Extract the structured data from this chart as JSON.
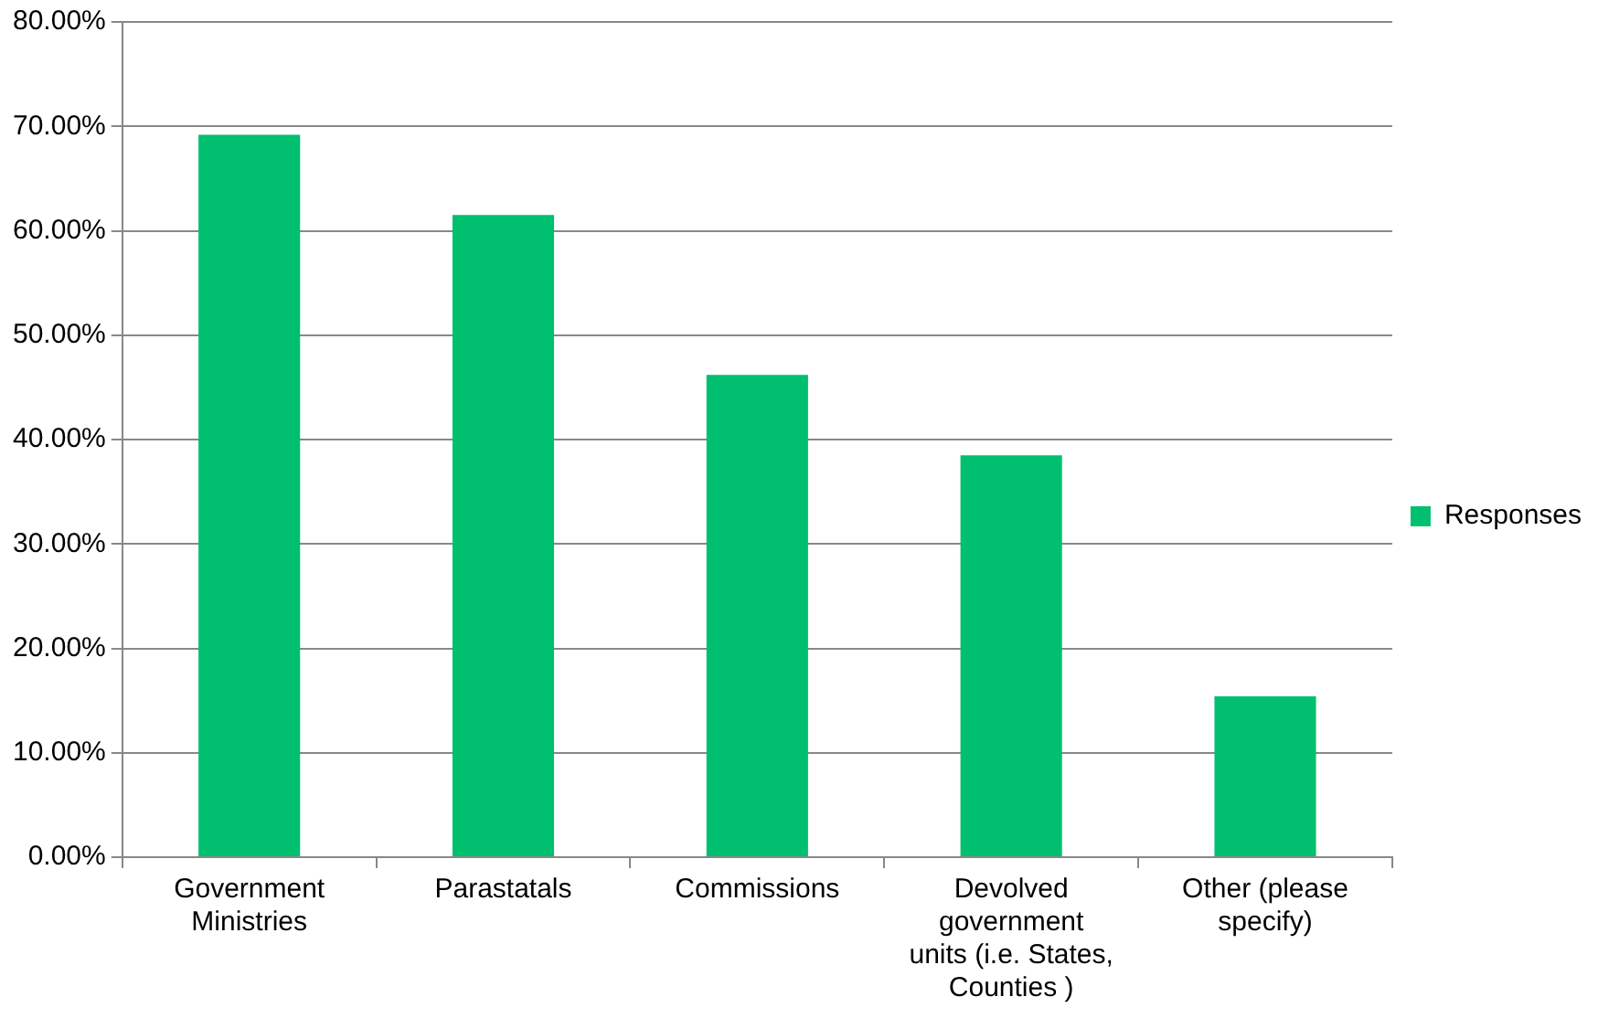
{
  "chart_data": {
    "type": "bar",
    "categories": [
      "Government Ministries",
      "Parastatals",
      "Commissions",
      "Devolved government units (i.e. States, Counties )",
      "Other (please specify)"
    ],
    "series": [
      {
        "name": "Responses",
        "color": "#00c070",
        "values": [
          69.2,
          61.5,
          46.2,
          38.5,
          15.4
        ]
      }
    ],
    "ylim": [
      0,
      80
    ],
    "yticks": [
      {
        "value": 0,
        "label": "0.00%"
      },
      {
        "value": 10,
        "label": "10.00%"
      },
      {
        "value": 20,
        "label": "20.00%"
      },
      {
        "value": 30,
        "label": "30.00%"
      },
      {
        "value": 40,
        "label": "40.00%"
      },
      {
        "value": 50,
        "label": "50.00%"
      },
      {
        "value": 60,
        "label": "60.00%"
      },
      {
        "value": 70,
        "label": "70.00%"
      },
      {
        "value": 80,
        "label": "80.00%"
      }
    ],
    "grid": "y",
    "legend": "right"
  }
}
